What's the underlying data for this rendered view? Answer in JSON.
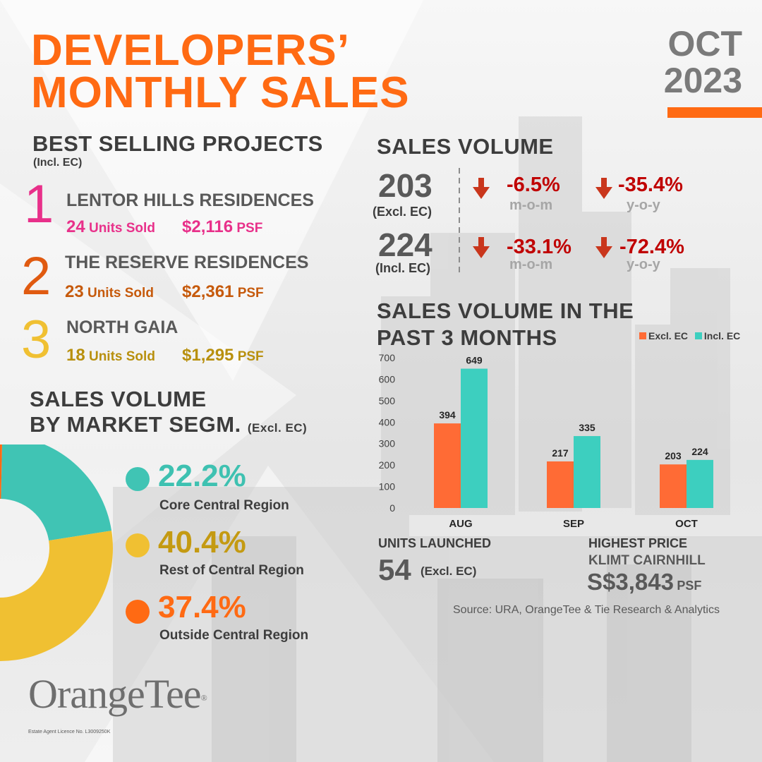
{
  "header": {
    "title_line1": "DEVELOPERS’",
    "title_line2": "MONTHLY SALES",
    "month": "OCT",
    "year": "2023"
  },
  "best_selling": {
    "heading": "BEST SELLING PROJECTS",
    "note": "(Incl. EC)",
    "items": [
      {
        "rank": "1",
        "name": "LENTOR HILLS RESIDENCES",
        "units": "24",
        "units_label": "Units Sold",
        "price": "$2,116",
        "price_unit": "PSF",
        "color": "#e8308a"
      },
      {
        "rank": "2",
        "name": "THE RESERVE RESIDENCES",
        "units": "23",
        "units_label": "Units Sold",
        "price": "$2,361",
        "price_unit": "PSF",
        "color": "#e05a10"
      },
      {
        "rank": "3",
        "name": "NORTH GAIA",
        "units": "18",
        "units_label": "Units Sold",
        "price": "$1,295",
        "price_unit": "PSF",
        "color": "#c9a31a"
      }
    ]
  },
  "sales_volume": {
    "heading": "SALES VOLUME",
    "rows": [
      {
        "value": "203",
        "note": "(Excl. EC)",
        "mom": "-6.5%",
        "mom_label": "m-o-m",
        "yoy": "-35.4%",
        "yoy_label": "y-o-y"
      },
      {
        "value": "224",
        "note": "(Incl. EC)",
        "mom": "-33.1%",
        "mom_label": "m-o-m",
        "yoy": "-72.4%",
        "yoy_label": "y-o-y"
      }
    ]
  },
  "segments": {
    "heading_line1": "SALES VOLUME",
    "heading_line2": "BY MARKET SEGM.",
    "note": "(Excl. EC)",
    "items": [
      {
        "pct": "22.2%",
        "label": "Core Central Region",
        "value": 22.2,
        "color": "#40c4b4",
        "text_color": "#3ec1b1"
      },
      {
        "pct": "40.4%",
        "label": "Rest of Central Region",
        "value": 40.4,
        "color": "#f0c032",
        "text_color": "#c49a12"
      },
      {
        "pct": "37.4%",
        "label": "Outside Central Region",
        "value": 37.4,
        "color": "#ff6a13",
        "text_color": "#ff6a13"
      }
    ]
  },
  "chart_heading": {
    "line1": "SALES VOLUME IN THE",
    "line2": "PAST 3 MONTHS"
  },
  "chart_data": {
    "type": "bar",
    "categories": [
      "AUG",
      "SEP",
      "OCT"
    ],
    "series": [
      {
        "name": "Excl. EC",
        "values": [
          394,
          217,
          203
        ],
        "color": "#ff6b35"
      },
      {
        "name": "Incl. EC",
        "values": [
          649,
          335,
          224
        ],
        "color": "#3dcfbf"
      }
    ],
    "ylim": [
      0,
      700
    ],
    "yticks": [
      0,
      100,
      200,
      300,
      400,
      500,
      600,
      700
    ],
    "legend_position": "top-right",
    "grid": false
  },
  "units_launched": {
    "heading": "UNITS LAUNCHED",
    "value": "54",
    "note": "(Excl. EC)"
  },
  "highest_price": {
    "heading": "HIGHEST PRICE",
    "project": "KLIMT CAIRNHILL",
    "price": "S$3,843",
    "unit": "PSF"
  },
  "source": "Source: URA, OrangeTee & Tie Research & Analytics",
  "brand": {
    "logo_text": "OrangeTee",
    "registered": "®",
    "licence": "Estate Agent Licence No. L3009250K"
  },
  "colors": {
    "accent": "#ff6a13",
    "decline": "#c00000"
  }
}
